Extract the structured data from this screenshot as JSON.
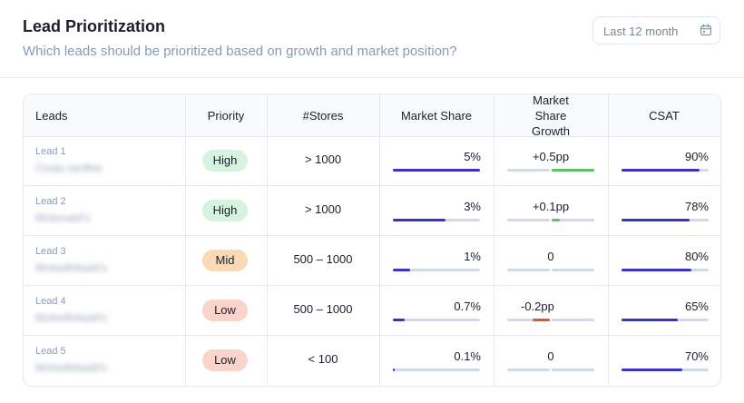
{
  "header": {
    "title": "Lead Prioritization",
    "subtitle": "Which leads should be prioritized based on growth and market position?"
  },
  "date_picker": {
    "label": "Last 12 month",
    "icon": "calendar-icon"
  },
  "table": {
    "columns": [
      "Leads",
      "Priority",
      "#Stores",
      "Market Share",
      "Market Share Growth",
      "CSAT"
    ],
    "rows": [
      {
        "lead_label": "Lead 1",
        "lead_name": "Costa saoffee",
        "priority": "High",
        "priority_color": "#d5f3df",
        "stores": "> 1000",
        "market_share": "5%",
        "market_share_pct": 100,
        "growth": "+0.5pp",
        "growth_value": 0.5,
        "csat": "90%",
        "csat_pct": 90
      },
      {
        "lead_label": "Lead 2",
        "lead_name": "Mcbonald's",
        "priority": "High",
        "priority_color": "#d5f3df",
        "stores": "> 1000",
        "market_share": "3%",
        "market_share_pct": 60,
        "growth": "+0.1pp",
        "growth_value": 0.1,
        "csat": "78%",
        "csat_pct": 78
      },
      {
        "lead_label": "Lead 3",
        "lead_name": "Mcbsdfsfaald's",
        "priority": "Mid",
        "priority_color": "#fad9b5",
        "stores": "500 – 1000",
        "market_share": "1%",
        "market_share_pct": 20,
        "growth": "0",
        "growth_value": 0,
        "csat": "80%",
        "csat_pct": 80
      },
      {
        "lead_label": "Lead 4",
        "lead_name": "Mcbsdfsfaald's",
        "priority": "Low",
        "priority_color": "#fad3cb",
        "stores": "500 – 1000",
        "market_share": "0.7%",
        "market_share_pct": 14,
        "growth": "-0.2pp",
        "growth_value": -0.2,
        "csat": "65%",
        "csat_pct": 65
      },
      {
        "lead_label": "Lead 5",
        "lead_name": "Mcbsdfsfaald's",
        "priority": "Low",
        "priority_color": "#fad3cb",
        "stores": "< 100",
        "market_share": "0.1%",
        "market_share_pct": 2,
        "growth": "0",
        "growth_value": 0,
        "csat": "70%",
        "csat_pct": 70
      }
    ]
  },
  "colors": {
    "bar_primary": "#3b32c4",
    "bar_positive": "#5ec26a",
    "bar_negative": "#e2532f",
    "bar_track": "#d3dae5"
  }
}
